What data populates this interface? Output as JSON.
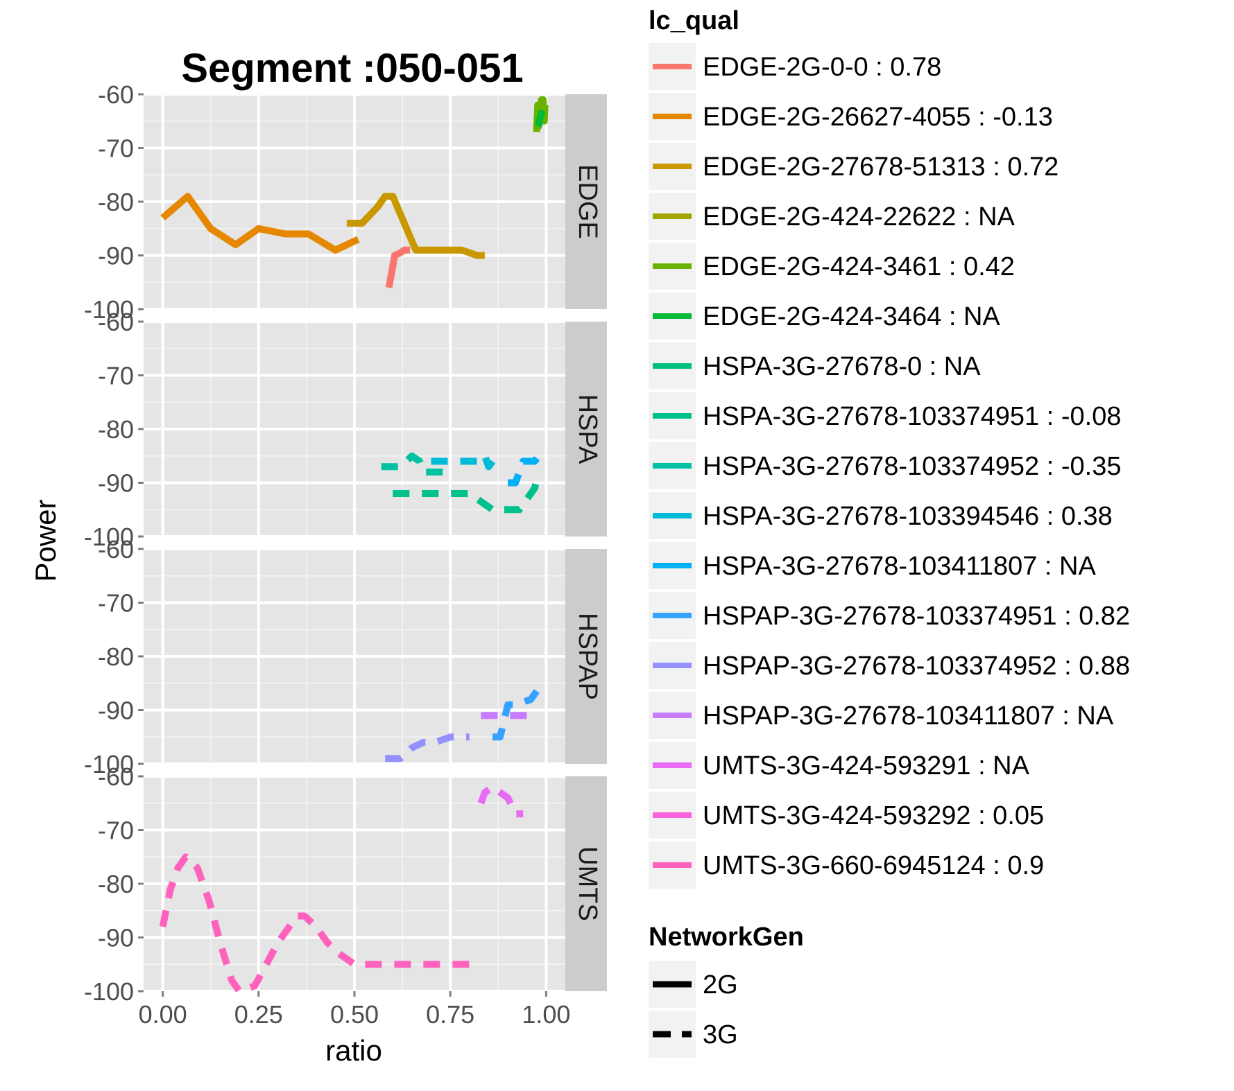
{
  "chart_data": {
    "type": "line",
    "title": "Segment :050-051",
    "xlabel": "ratio",
    "ylabel": "Power",
    "xlim": [
      -0.05,
      1.05
    ],
    "ylim": [
      -100,
      -60
    ],
    "x_ticks": [
      0,
      0.25,
      0.5,
      0.75,
      1
    ],
    "x_tick_labels": [
      "0.00",
      "0.25",
      "0.50",
      "0.75",
      "1.00"
    ],
    "y_ticks": [
      -60,
      -70,
      -80,
      -90,
      -100
    ],
    "y_tick_labels": [
      "-60",
      "-70",
      "-80",
      "-90",
      "-100"
    ],
    "facets": [
      "EDGE",
      "HSPA",
      "HSPAP",
      "UMTS"
    ],
    "grid": true,
    "legend_color": {
      "title": "lc_qual",
      "placement": "right"
    },
    "legend_linetype": {
      "title": "NetworkGen",
      "entries": [
        {
          "label": "2G",
          "dash": "solid"
        },
        {
          "label": "3G",
          "dash": "dashed"
        }
      ]
    },
    "series": [
      {
        "name": "EDGE-2G-0-0 : 0.78",
        "color": "#F8766D",
        "facet": "EDGE",
        "gen": "2G",
        "x": [
          0.59,
          0.6,
          0.605,
          0.62,
          0.63,
          0.645
        ],
        "y": [
          -96,
          -92,
          -90,
          -89.5,
          -89,
          -89
        ]
      },
      {
        "name": "EDGE-2G-26627-4055 : -0.13",
        "color": "#E58700",
        "facet": "EDGE",
        "gen": "2G",
        "x": [
          0.0,
          0.065,
          0.125,
          0.19,
          0.25,
          0.32,
          0.38,
          0.45,
          0.51
        ],
        "y": [
          -83,
          -79,
          -85,
          -88,
          -85,
          -86,
          -86,
          -89,
          -87
        ]
      },
      {
        "name": "EDGE-2G-27678-51313 : 0.72",
        "color": "#C99800",
        "facet": "EDGE",
        "gen": "2G",
        "x": [
          0.48,
          0.52,
          0.56,
          0.58,
          0.6,
          0.66,
          0.72,
          0.78,
          0.82,
          0.84
        ],
        "y": [
          -84,
          -84,
          -81,
          -79,
          -79,
          -89,
          -89,
          -89,
          -90,
          -90
        ]
      },
      {
        "name": "EDGE-2G-424-22622 : NA",
        "color": "#A3A500",
        "facet": "EDGE",
        "gen": "2G",
        "x": [],
        "y": []
      },
      {
        "name": "EDGE-2G-424-3461 : 0.42",
        "color": "#6BB100",
        "facet": "EDGE",
        "gen": "2G",
        "x": [
          0.975,
          0.978,
          0.98,
          0.983,
          0.985,
          0.988,
          0.99,
          0.992,
          0.995,
          0.997
        ],
        "y": [
          -67,
          -62,
          -66,
          -62,
          -65,
          -61,
          -64,
          -61,
          -65,
          -62
        ]
      },
      {
        "name": "EDGE-2G-424-3464 : NA",
        "color": "#00BA38",
        "facet": "EDGE",
        "gen": "2G",
        "x": [
          0.98,
          0.985,
          0.99
        ],
        "y": [
          -66,
          -64,
          -63
        ]
      },
      {
        "name": "HSPA-3G-27678-0 : NA",
        "color": "#00BF7D",
        "facet": "HSPA",
        "gen": "3G",
        "x": [],
        "y": []
      },
      {
        "name": "HSPA-3G-27678-103374951 : -0.08",
        "color": "#00C08B",
        "facet": "HSPA",
        "gen": "3G",
        "x": [
          0.6,
          0.7,
          0.8,
          0.86,
          0.93,
          0.95,
          0.97,
          0.98
        ],
        "y": [
          -92,
          -92,
          -92,
          -95,
          -95,
          -93,
          -91,
          -88
        ]
      },
      {
        "name": "HSPA-3G-27678-103374952 : -0.35",
        "color": "#00C1A3",
        "facet": "HSPA",
        "gen": "3G",
        "x": [
          0.57,
          0.62,
          0.65,
          0.67,
          0.68,
          0.72,
          0.76
        ],
        "y": [
          -87,
          -87,
          -85,
          -86,
          -88,
          -88,
          -88
        ]
      },
      {
        "name": "HSPA-3G-27678-103394546 : 0.38",
        "color": "#00BCD8",
        "facet": "HSPA",
        "gen": "3G",
        "x": [
          0.7,
          0.78,
          0.83,
          0.84,
          0.85,
          0.86
        ],
        "y": [
          -86,
          -86,
          -86,
          -85,
          -87,
          -86
        ]
      },
      {
        "name": "HSPA-3G-27678-103411807 : NA",
        "color": "#00B0F6",
        "facet": "HSPA",
        "gen": "3G",
        "x": [
          0.9,
          0.92,
          0.93,
          0.94,
          0.97,
          0.98,
          0.99
        ],
        "y": [
          -90,
          -90,
          -88,
          -86,
          -86,
          -85,
          -84
        ]
      },
      {
        "name": "HSPAP-3G-27678-103374951 : 0.82",
        "color": "#35A2FF",
        "facet": "HSPAP",
        "gen": "3G",
        "x": [
          0.86,
          0.88,
          0.89,
          0.9,
          0.92,
          0.96,
          0.97,
          0.98,
          0.99
        ],
        "y": [
          -95,
          -95,
          -92,
          -89,
          -89,
          -88,
          -87,
          -86,
          -85
        ]
      },
      {
        "name": "HSPAP-3G-27678-103374952 : 0.88",
        "color": "#9590FF",
        "facet": "HSPAP",
        "gen": "3G",
        "x": [
          0.58,
          0.62,
          0.65,
          0.68,
          0.71,
          0.75,
          0.8
        ],
        "y": [
          -99,
          -99,
          -97,
          -96,
          -96,
          -95,
          -95
        ]
      },
      {
        "name": "HSPAP-3G-27678-103411807 : NA",
        "color": "#C77CFF",
        "facet": "HSPAP",
        "gen": "3G",
        "x": [
          0.83,
          0.87,
          0.91,
          0.95
        ],
        "y": [
          -91,
          -91,
          -91,
          -91
        ]
      },
      {
        "name": "UMTS-3G-424-593291 : NA",
        "color": "#E76BF3",
        "facet": "UMTS",
        "gen": "3G",
        "x": [
          0.83,
          0.84,
          0.86,
          0.88,
          0.9,
          0.92,
          0.94
        ],
        "y": [
          -65,
          -63,
          -62,
          -63,
          -64,
          -67,
          -67
        ]
      },
      {
        "name": "UMTS-3G-424-593292 : 0.05",
        "color": "#FA62DB",
        "facet": "UMTS",
        "gen": "3G",
        "x": [],
        "y": []
      },
      {
        "name": "UMTS-3G-660-6945124 : 0.9",
        "color": "#FF62BC",
        "facet": "UMTS",
        "gen": "3G",
        "x": [
          0.0,
          0.02,
          0.04,
          0.06,
          0.09,
          0.12,
          0.15,
          0.18,
          0.2,
          0.24,
          0.27,
          0.3,
          0.33,
          0.35,
          0.37,
          0.4,
          0.43,
          0.46,
          0.5,
          0.55,
          0.6,
          0.7,
          0.8
        ],
        "y": [
          -88,
          -81,
          -77,
          -75,
          -77,
          -83,
          -91,
          -98,
          -100,
          -99,
          -95,
          -91,
          -88,
          -86,
          -86,
          -88,
          -91,
          -93,
          -95,
          -95,
          -95,
          -95,
          -95
        ]
      }
    ]
  }
}
